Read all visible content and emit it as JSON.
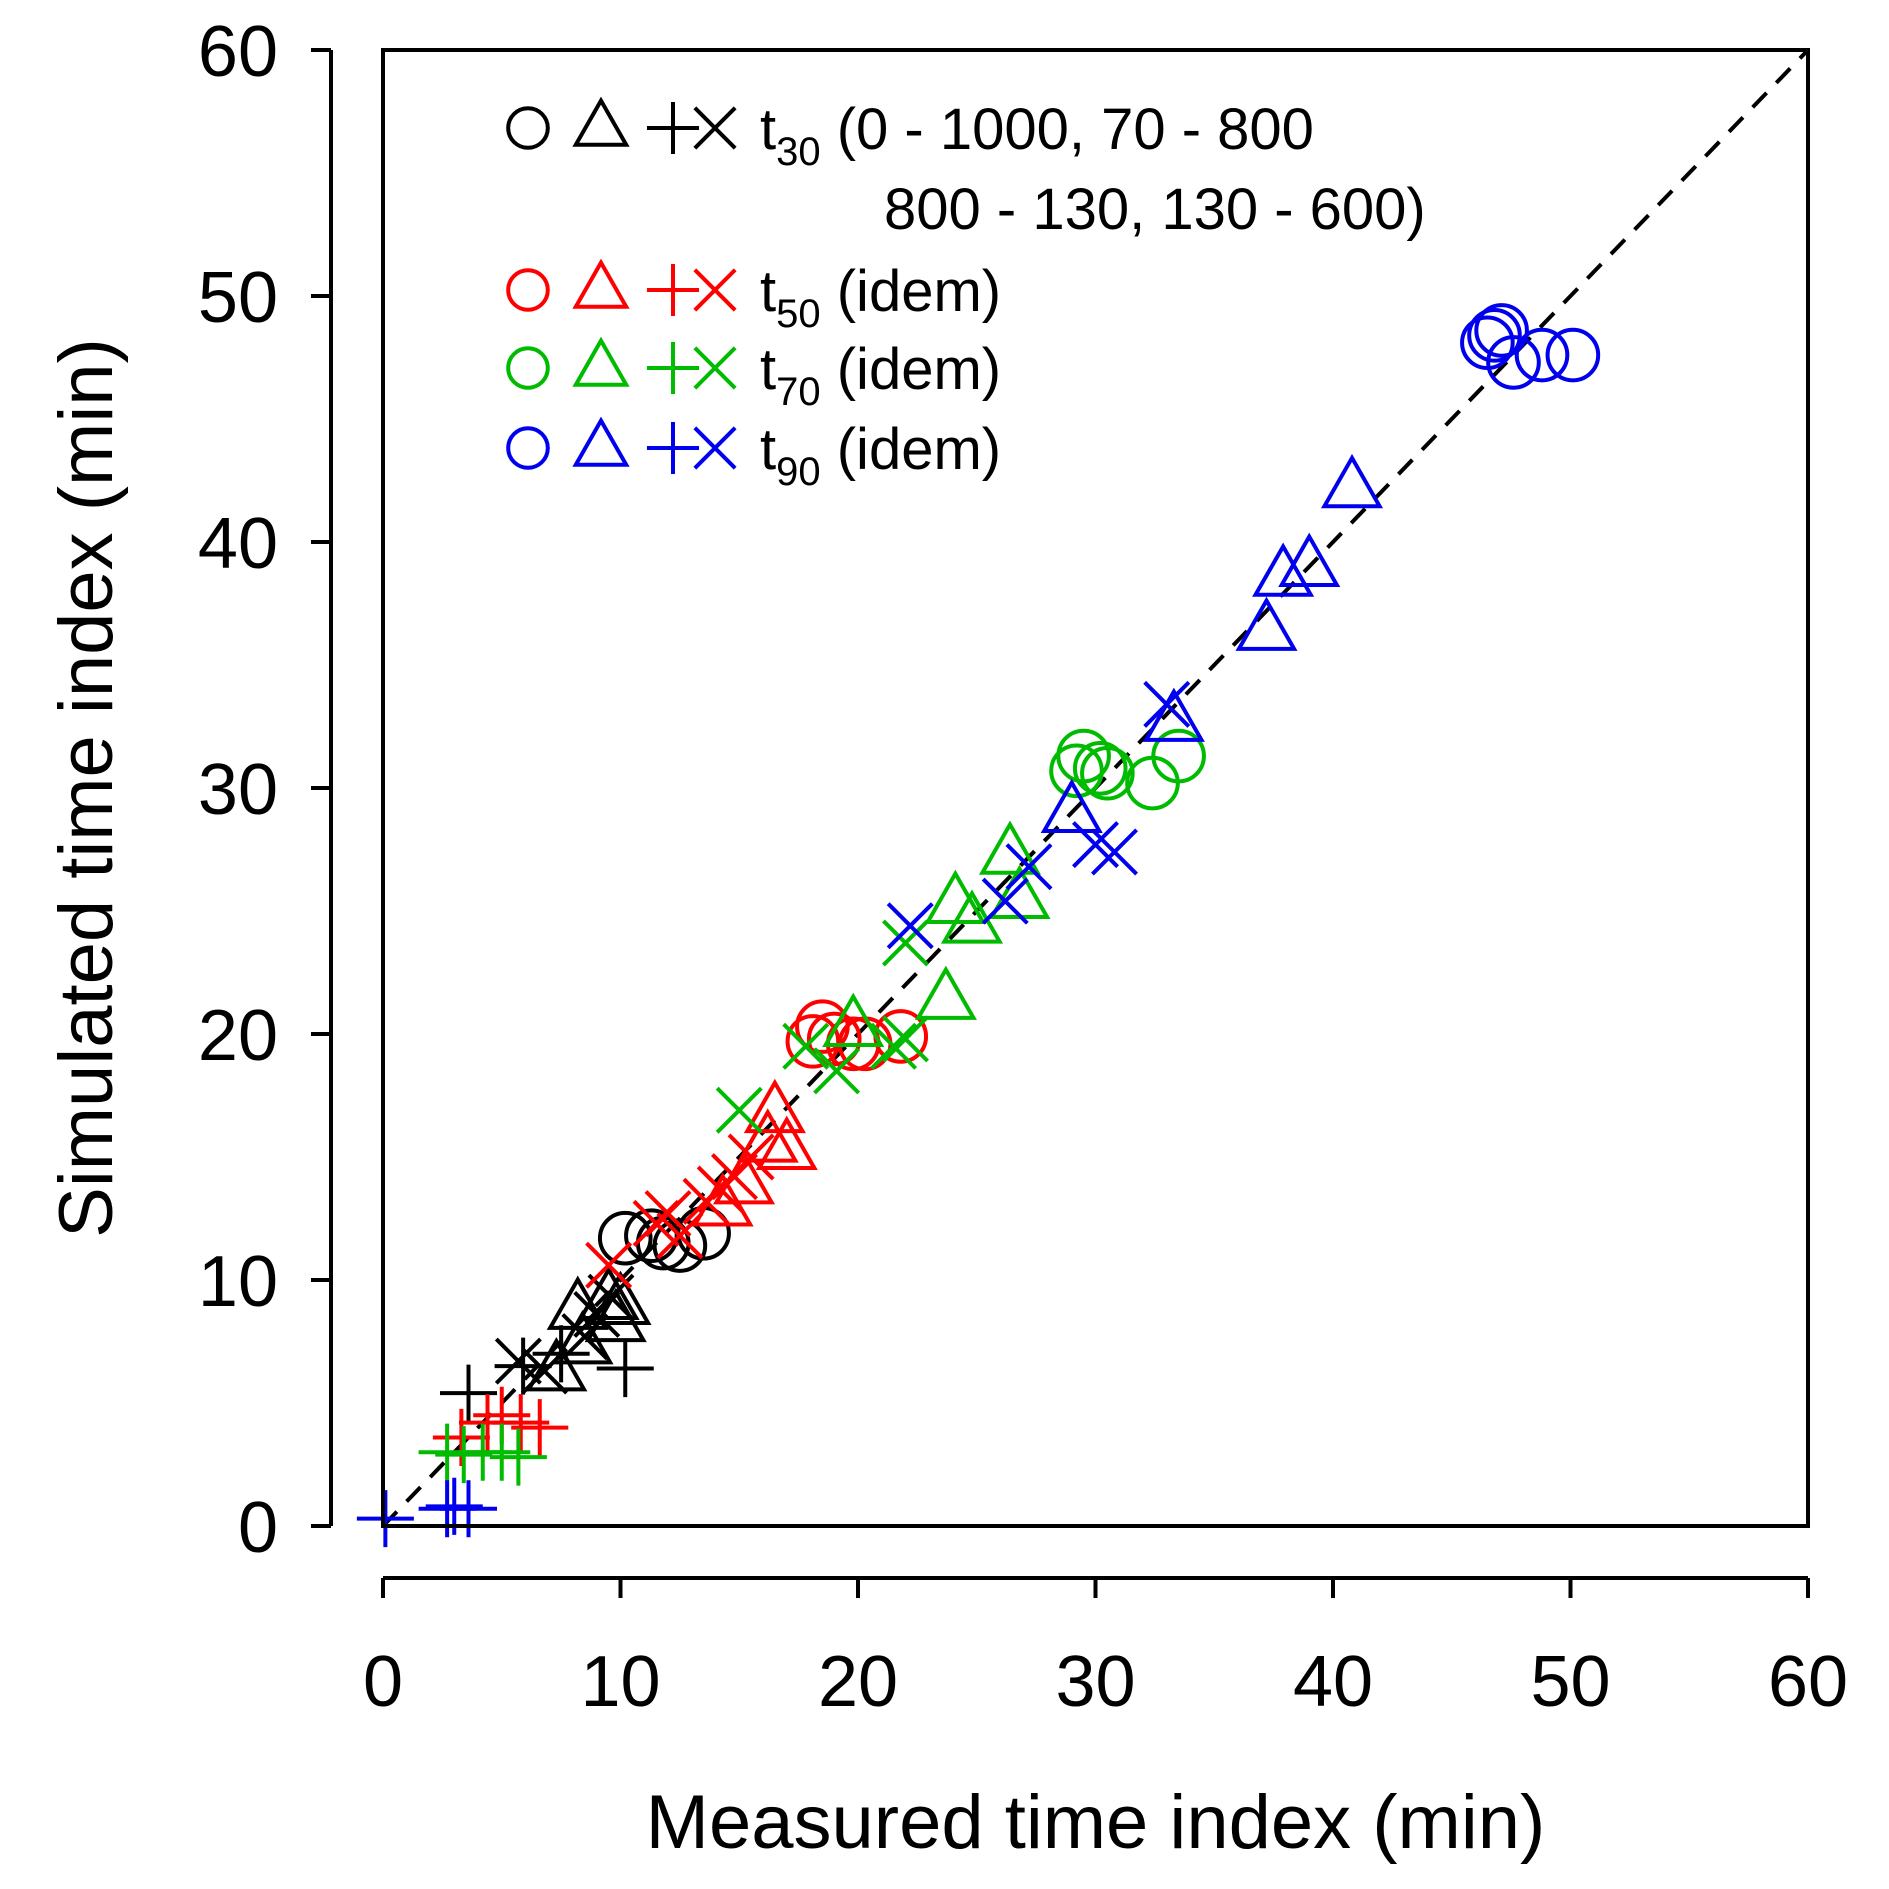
{
  "chart_data": {
    "type": "scatter",
    "xlabel": "Measured time index (min)",
    "ylabel": "Simulated time index (min)",
    "xlim": [
      0,
      60
    ],
    "ylim": [
      0,
      60
    ],
    "xticks": [
      "0",
      "10",
      "20",
      "30",
      "40",
      "50",
      "60"
    ],
    "yticks": [
      "0",
      "10",
      "20",
      "30",
      "40",
      "50",
      "60"
    ],
    "grid": false,
    "reference_line": {
      "type": "identity",
      "style": "dashed",
      "color": "#000000"
    },
    "legend_placement": "top-left",
    "marker_names": [
      "circle",
      "triangle",
      "plus",
      "cross"
    ],
    "series": [
      {
        "name": "t30",
        "legend_prefix": "t",
        "legend_sub": "30",
        "legend_text": " (0 - 1000, 70 - 800",
        "legend_text2": "800 - 130, 130 - 600)",
        "color": "#000000",
        "circle": [
          [
            10.2,
            11.7
          ],
          [
            11.3,
            11.8
          ],
          [
            11.8,
            11.5
          ],
          [
            12.5,
            11.4
          ],
          [
            13.5,
            11.9
          ]
        ],
        "triangle": [
          [
            8.2,
            8.8
          ],
          [
            9.5,
            9.2
          ],
          [
            10.0,
            9.0
          ],
          [
            9.8,
            8.3
          ],
          [
            8.4,
            7.4
          ],
          [
            7.3,
            6.3
          ]
        ],
        "plus": [
          [
            3.6,
            5.4
          ],
          [
            5.9,
            6.5
          ],
          [
            7.5,
            7.0
          ],
          [
            10.2,
            6.4
          ]
        ],
        "cross": [
          [
            5.7,
            6.7
          ],
          [
            6.8,
            6.3
          ],
          [
            8.5,
            7.7
          ],
          [
            9.0,
            8.6
          ],
          [
            9.6,
            9.3
          ]
        ]
      },
      {
        "name": "t50",
        "legend_prefix": "t",
        "legend_sub": "50",
        "legend_text": " (idem)",
        "color": "#ff0000",
        "circle": [
          [
            18.1,
            19.7
          ],
          [
            18.5,
            20.3
          ],
          [
            19.0,
            19.8
          ],
          [
            19.8,
            19.6
          ],
          [
            20.3,
            19.6
          ],
          [
            21.8,
            19.9
          ]
        ],
        "triangle": [
          [
            15.2,
            13.9
          ],
          [
            16.2,
            15.6
          ],
          [
            16.5,
            16.8
          ],
          [
            17.0,
            15.3
          ],
          [
            14.3,
            13.0
          ]
        ],
        "plus": [
          [
            3.3,
            3.6
          ],
          [
            4.4,
            4.2
          ],
          [
            5.0,
            4.5
          ],
          [
            5.8,
            4.2
          ],
          [
            6.6,
            4.0
          ]
        ],
        "cross": [
          [
            9.5,
            10.6
          ],
          [
            11.5,
            12.3
          ],
          [
            12.0,
            12.7
          ],
          [
            12.5,
            11.8
          ],
          [
            13.6,
            13.2
          ],
          [
            14.2,
            13.7
          ],
          [
            14.8,
            14.2
          ],
          [
            15.5,
            15.0
          ]
        ]
      },
      {
        "name": "t70",
        "legend_prefix": "t",
        "legend_sub": "70",
        "legend_text": " (idem)",
        "color": "#00bb00",
        "circle": [
          [
            29.2,
            30.7
          ],
          [
            29.5,
            31.3
          ],
          [
            30.2,
            30.8
          ],
          [
            30.5,
            30.6
          ],
          [
            32.4,
            30.2
          ],
          [
            33.5,
            31.3
          ]
        ],
        "triangle": [
          [
            19.8,
            20.3
          ],
          [
            23.7,
            21.4
          ],
          [
            24.1,
            25.3
          ],
          [
            24.8,
            24.5
          ],
          [
            26.4,
            27.3
          ],
          [
            26.8,
            25.5
          ]
        ],
        "plus": [
          [
            2.7,
            3.0
          ],
          [
            3.4,
            2.9
          ],
          [
            4.2,
            3.0
          ],
          [
            5.0,
            3.0
          ],
          [
            5.7,
            2.8
          ]
        ],
        "cross": [
          [
            15.0,
            16.9
          ],
          [
            17.8,
            19.5
          ],
          [
            19.1,
            18.5
          ],
          [
            21.5,
            19.5
          ],
          [
            22.0,
            19.8
          ],
          [
            22.0,
            23.7
          ]
        ]
      },
      {
        "name": "t90",
        "legend_prefix": "t",
        "legend_sub": "90",
        "legend_text": " (idem)",
        "color": "#0000ee",
        "circle": [
          [
            46.5,
            48.1
          ],
          [
            46.8,
            48.4
          ],
          [
            47.1,
            48.6
          ],
          [
            47.6,
            47.3
          ],
          [
            48.8,
            47.6
          ],
          [
            50.1,
            47.6
          ]
        ],
        "triangle": [
          [
            29.0,
            29.0
          ],
          [
            33.3,
            32.7
          ],
          [
            37.2,
            36.4
          ],
          [
            37.9,
            38.6
          ],
          [
            39.0,
            39.0
          ],
          [
            40.8,
            42.2
          ]
        ],
        "plus": [
          [
            0.1,
            0.3
          ],
          [
            2.7,
            0.7
          ],
          [
            3.0,
            0.8
          ],
          [
            3.6,
            0.7
          ]
        ],
        "cross": [
          [
            22.2,
            24.4
          ],
          [
            26.2,
            25.4
          ],
          [
            27.2,
            26.8
          ],
          [
            30.0,
            27.7
          ],
          [
            30.8,
            27.4
          ],
          [
            33.0,
            33.4
          ]
        ]
      }
    ]
  }
}
